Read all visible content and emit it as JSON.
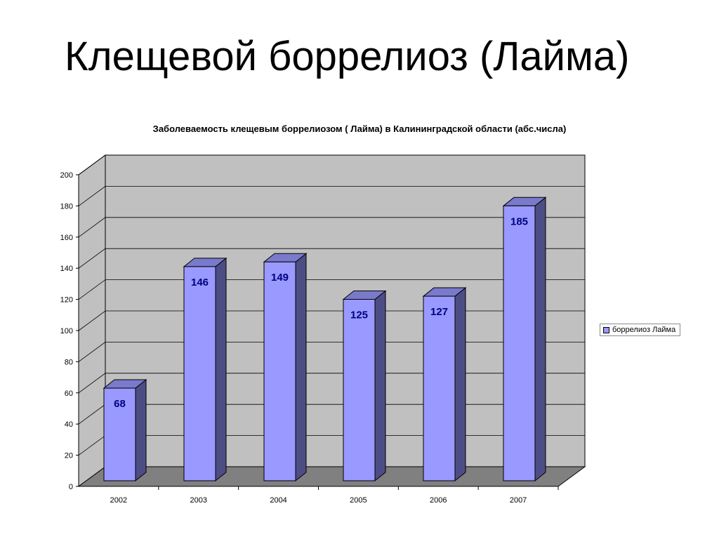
{
  "slide": {
    "title": "Клещевой боррелиоз (Лайма)"
  },
  "chart_data": {
    "type": "bar",
    "title": "Заболеваемость клещевым боррелиозом ( Лайма) в Калининградской области (абс.числа)",
    "xlabel": "",
    "ylabel": "",
    "categories": [
      "2002",
      "2003",
      "2004",
      "2005",
      "2006",
      "2007"
    ],
    "series": [
      {
        "name": "боррелиоз Лайма",
        "values": [
          68,
          146,
          149,
          125,
          127,
          185
        ]
      }
    ],
    "ylim": [
      0,
      200
    ],
    "yticks": [
      0,
      20,
      40,
      60,
      80,
      100,
      120,
      140,
      160,
      180,
      200
    ],
    "grid": true,
    "three_d": true,
    "data_labels": true,
    "legend_position": "right",
    "colors": {
      "bar_front": "#9999ff",
      "bar_side": "#4d4d86",
      "bar_top": "#7a7acc",
      "wall": "#c0c0c0",
      "floor": "#808080",
      "label_text": "#000080"
    }
  }
}
